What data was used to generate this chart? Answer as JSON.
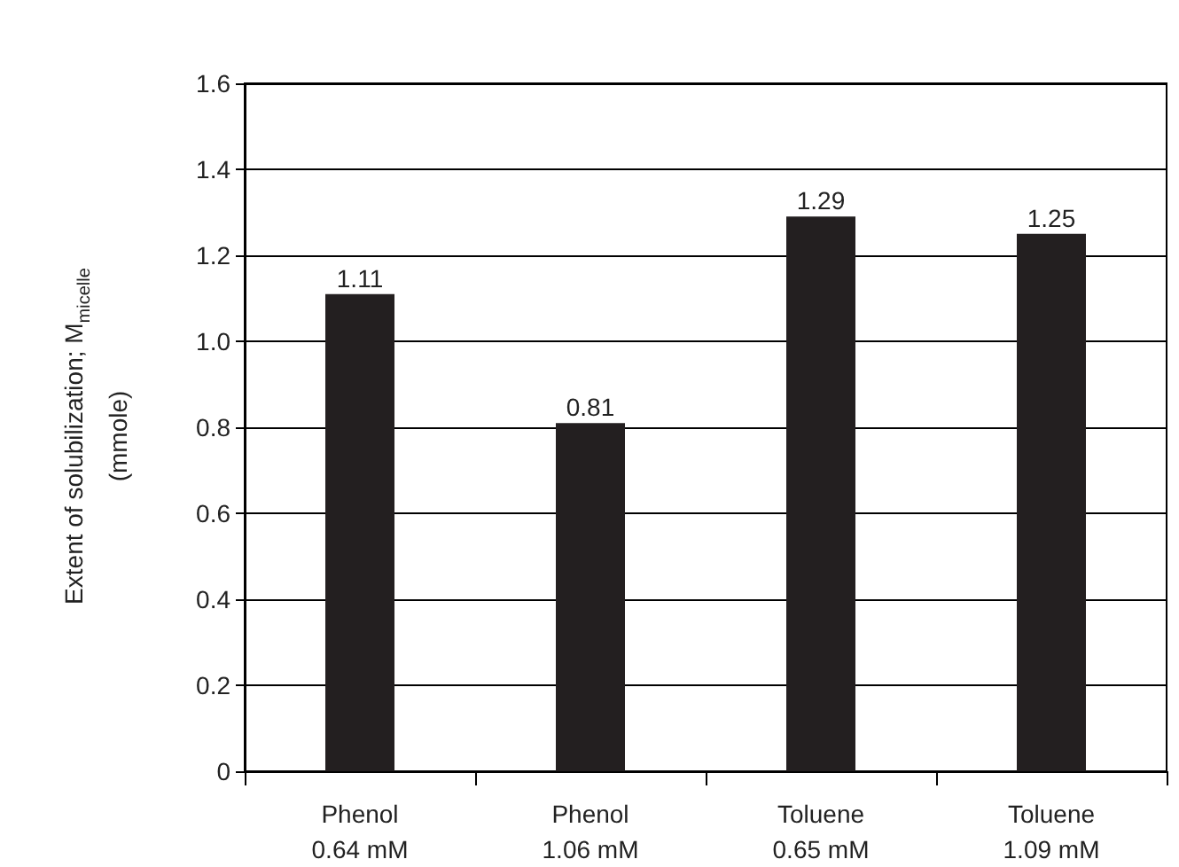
{
  "chart_data": {
    "type": "bar",
    "ylabel": "Extent of solubilization; M$_{micelle}$\n(mmole)",
    "categories": [
      "Phenol\n0.64 mM",
      "Phenol\n1.06 mM",
      "Toluene\n0.65 mM",
      "Toluene\n1.09 mM"
    ],
    "values": [
      1.11,
      0.81,
      1.29,
      1.25
    ],
    "color": "#231f20",
    "data_labels": true,
    "ylim": [
      0,
      1.6
    ],
    "yticks": [
      0,
      0.2,
      0.4,
      0.6,
      0.8,
      {
        "value": 1,
        "label": "1.0"
      },
      1.2,
      1.4,
      1.6
    ],
    "grid": "y"
  }
}
